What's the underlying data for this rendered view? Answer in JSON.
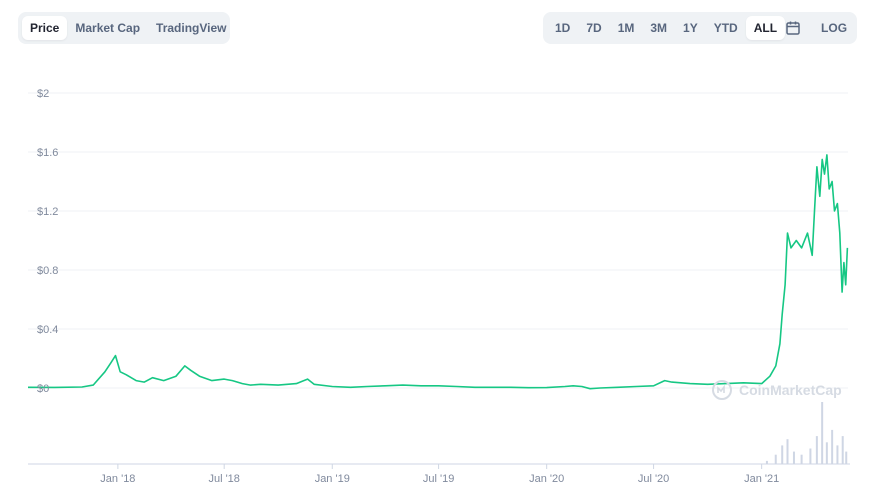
{
  "tabs": [
    {
      "label": "Price",
      "active": true
    },
    {
      "label": "Market Cap",
      "active": false
    },
    {
      "label": "TradingView",
      "active": false
    }
  ],
  "ranges": [
    {
      "label": "1D",
      "active": false
    },
    {
      "label": "7D",
      "active": false
    },
    {
      "label": "1M",
      "active": false
    },
    {
      "label": "3M",
      "active": false
    },
    {
      "label": "1Y",
      "active": false
    },
    {
      "label": "YTD",
      "active": false
    },
    {
      "label": "ALL",
      "active": true
    }
  ],
  "icons": {
    "calendar": "calendar-icon",
    "watermark": "coinmarketcap-logo"
  },
  "log_label": "LOG",
  "watermark": "CoinMarketCap",
  "colors": {
    "line": "#16c784",
    "grid": "#eff2f5",
    "label": "#808a9d",
    "volume": "#cfd6e4"
  },
  "chart_data": {
    "type": "line",
    "title": "",
    "xlabel": "",
    "ylabel": "",
    "ylim": [
      0,
      2
    ],
    "yticks": [
      "$0",
      "$0.4",
      "$0.8",
      "$1.2",
      "$1.6",
      "$2"
    ],
    "xticks": [
      "Jan '18",
      "Jul '18",
      "Jan '19",
      "Jul '19",
      "Jan '20",
      "Jul '20",
      "Jan '21"
    ],
    "grid": true,
    "series": [
      {
        "x": [
          "2017-08-01",
          "2017-09-15",
          "2017-11-01",
          "2017-11-20",
          "2017-12-10",
          "2017-12-20",
          "2017-12-28",
          "2018-01-05",
          "2018-01-15",
          "2018-02-01",
          "2018-02-15",
          "2018-03-01",
          "2018-03-20",
          "2018-04-10",
          "2018-04-25",
          "2018-05-05",
          "2018-05-20",
          "2018-06-10",
          "2018-07-01",
          "2018-07-15",
          "2018-08-01",
          "2018-08-15",
          "2018-09-01",
          "2018-10-01",
          "2018-11-01",
          "2018-11-20",
          "2018-12-01",
          "2019-01-01",
          "2019-02-01",
          "2019-03-01",
          "2019-04-01",
          "2019-05-01",
          "2019-06-01",
          "2019-07-01",
          "2019-08-01",
          "2019-09-01",
          "2019-10-01",
          "2019-11-01",
          "2019-12-01",
          "2020-01-01",
          "2020-02-01",
          "2020-02-15",
          "2020-03-01",
          "2020-03-15",
          "2020-04-01",
          "2020-05-01",
          "2020-06-01",
          "2020-07-01",
          "2020-07-20",
          "2020-08-01",
          "2020-09-01",
          "2020-10-01",
          "2020-11-01",
          "2020-12-01",
          "2021-01-01",
          "2021-01-15",
          "2021-01-25",
          "2021-02-01",
          "2021-02-05",
          "2021-02-10",
          "2021-02-14",
          "2021-02-20",
          "2021-03-01",
          "2021-03-10",
          "2021-03-20",
          "2021-03-28",
          "2021-04-01",
          "2021-04-05",
          "2021-04-10",
          "2021-04-14",
          "2021-04-18",
          "2021-04-22",
          "2021-04-26",
          "2021-05-01",
          "2021-05-05",
          "2021-05-10",
          "2021-05-14",
          "2021-05-18",
          "2021-05-21",
          "2021-05-24",
          "2021-05-27"
        ],
        "values": [
          0.005,
          0.004,
          0.007,
          0.02,
          0.11,
          0.17,
          0.22,
          0.11,
          0.09,
          0.05,
          0.04,
          0.07,
          0.05,
          0.08,
          0.15,
          0.12,
          0.08,
          0.05,
          0.06,
          0.05,
          0.03,
          0.02,
          0.025,
          0.02,
          0.03,
          0.06,
          0.025,
          0.01,
          0.005,
          0.01,
          0.015,
          0.02,
          0.015,
          0.015,
          0.01,
          0.005,
          0.005,
          0.005,
          0.002,
          0.003,
          0.01,
          0.015,
          0.01,
          -0.005,
          0.0,
          0.005,
          0.01,
          0.015,
          0.05,
          0.04,
          0.03,
          0.025,
          0.03,
          0.035,
          0.03,
          0.08,
          0.15,
          0.3,
          0.5,
          0.7,
          1.05,
          0.95,
          1.0,
          0.95,
          1.05,
          0.9,
          1.2,
          1.5,
          1.3,
          1.55,
          1.45,
          1.58,
          1.35,
          1.4,
          1.2,
          1.25,
          1.05,
          0.65,
          0.85,
          0.7,
          0.95
        ]
      }
    ],
    "volume": {
      "x": [
        "2021-01-10",
        "2021-01-25",
        "2021-02-05",
        "2021-02-14",
        "2021-02-25",
        "2021-03-10",
        "2021-03-25",
        "2021-04-05",
        "2021-04-14",
        "2021-04-22",
        "2021-05-01",
        "2021-05-10",
        "2021-05-19",
        "2021-05-25"
      ],
      "values": [
        0.05,
        0.15,
        0.3,
        0.4,
        0.2,
        0.15,
        0.25,
        0.45,
        1.0,
        0.35,
        0.55,
        0.3,
        0.45,
        0.2
      ]
    }
  }
}
